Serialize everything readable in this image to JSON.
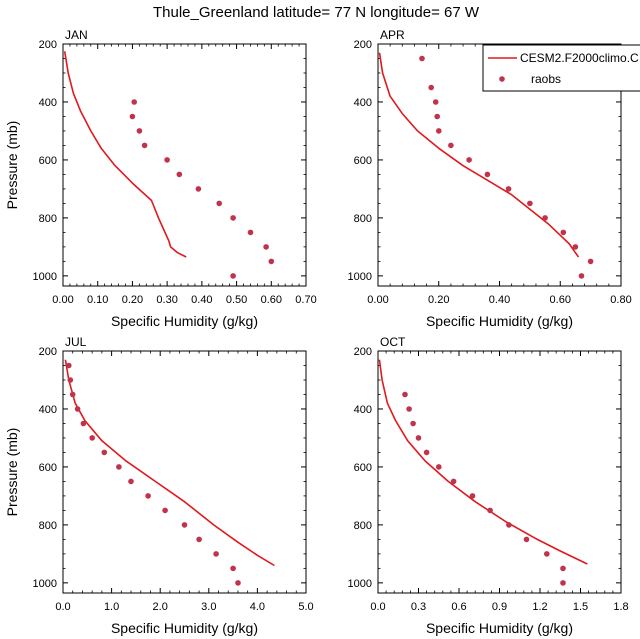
{
  "figure_title": "Thule_Greenland  latitude= 77 N longitude= 67 W",
  "colors": {
    "model_line": "#e0191e",
    "obs_marker": "#c0334b"
  },
  "legend": {
    "model_label": "CESM2.F2000climo.C",
    "obs_label": "raobs"
  },
  "chart_data": [
    {
      "type": "line",
      "panel_label": "JAN",
      "xlabel": "Specific Humidity (g/kg)",
      "ylabel": "Pressure (mb)",
      "xlim": [
        0,
        0.7
      ],
      "ylim": [
        200,
        1035
      ],
      "y_inverted": true,
      "xticks": [
        "0.00",
        "0.10",
        "0.20",
        "0.30",
        "0.40",
        "0.50",
        "0.60",
        "0.70"
      ],
      "yticks": [
        "200",
        "400",
        "600",
        "800",
        "1000"
      ],
      "series": [
        {
          "name": "CESM2.F2000climo.C",
          "style": "line",
          "x": [
            0.005,
            0.015,
            0.03,
            0.05,
            0.08,
            0.11,
            0.15,
            0.2,
            0.255,
            0.275,
            0.29,
            0.305,
            0.31,
            0.33,
            0.355
          ],
          "y": [
            225,
            300,
            370,
            430,
            500,
            560,
            620,
            680,
            740,
            800,
            840,
            880,
            900,
            920,
            935
          ]
        },
        {
          "name": "raobs",
          "style": "markers",
          "x": [
            0.205,
            0.2,
            0.22,
            0.235,
            0.3,
            0.335,
            0.39,
            0.45,
            0.49,
            0.54,
            0.585,
            0.6,
            0.49
          ],
          "y": [
            400,
            450,
            500,
            550,
            600,
            650,
            700,
            750,
            800,
            850,
            900,
            950,
            1000
          ]
        }
      ]
    },
    {
      "type": "line",
      "panel_label": "APR",
      "xlabel": "Specific Humidity (g/kg)",
      "ylabel": "",
      "xlim": [
        0,
        0.8
      ],
      "ylim": [
        200,
        1035
      ],
      "y_inverted": true,
      "xticks": [
        "0.00",
        "0.20",
        "0.40",
        "0.60",
        "0.80"
      ],
      "yticks": [
        "200",
        "400",
        "600",
        "800",
        "1000"
      ],
      "series": [
        {
          "name": "CESM2.F2000climo.C",
          "style": "line",
          "x": [
            0.005,
            0.015,
            0.04,
            0.08,
            0.13,
            0.2,
            0.28,
            0.36,
            0.44,
            0.5,
            0.56,
            0.6,
            0.63,
            0.65,
            0.66
          ],
          "y": [
            230,
            300,
            380,
            440,
            500,
            560,
            620,
            670,
            720,
            770,
            820,
            860,
            890,
            920,
            935
          ]
        },
        {
          "name": "raobs",
          "style": "markers",
          "x": [
            0.145,
            0.175,
            0.19,
            0.195,
            0.2,
            0.24,
            0.3,
            0.36,
            0.43,
            0.5,
            0.55,
            0.61,
            0.65,
            0.7,
            0.67
          ],
          "y": [
            250,
            350,
            400,
            450,
            500,
            550,
            600,
            650,
            700,
            750,
            800,
            850,
            900,
            950,
            1000
          ]
        }
      ]
    },
    {
      "type": "line",
      "panel_label": "JUL",
      "xlabel": "Specific Humidity (g/kg)",
      "ylabel": "Pressure (mb)",
      "xlim": [
        0,
        5.0
      ],
      "ylim": [
        200,
        1035
      ],
      "y_inverted": true,
      "xticks": [
        "0.0",
        "1.0",
        "2.0",
        "3.0",
        "4.0",
        "5.0"
      ],
      "yticks": [
        "200",
        "400",
        "600",
        "800",
        "1000"
      ],
      "series": [
        {
          "name": "CESM2.F2000climo.C",
          "style": "line",
          "x": [
            0.05,
            0.12,
            0.25,
            0.45,
            0.8,
            1.3,
            1.9,
            2.5,
            3.1,
            3.6,
            4.0,
            4.35
          ],
          "y": [
            230,
            300,
            380,
            440,
            510,
            580,
            650,
            720,
            800,
            860,
            905,
            940
          ]
        },
        {
          "name": "raobs",
          "style": "markers",
          "x": [
            0.12,
            0.15,
            0.2,
            0.3,
            0.42,
            0.6,
            0.85,
            1.15,
            1.4,
            1.75,
            2.1,
            2.5,
            2.8,
            3.15,
            3.5,
            3.6
          ],
          "y": [
            250,
            300,
            350,
            400,
            450,
            500,
            550,
            600,
            650,
            700,
            750,
            800,
            850,
            900,
            950,
            1000
          ]
        }
      ]
    },
    {
      "type": "line",
      "panel_label": "OCT",
      "xlabel": "Specific Humidity (g/kg)",
      "ylabel": "",
      "xlim": [
        0,
        1.8
      ],
      "ylim": [
        200,
        1035
      ],
      "y_inverted": true,
      "xticks": [
        "0.0",
        "0.3",
        "0.6",
        "0.9",
        "1.2",
        "1.5",
        "1.8"
      ],
      "yticks": [
        "200",
        "400",
        "600",
        "800",
        "1000"
      ],
      "series": [
        {
          "name": "CESM2.F2000climo.C",
          "style": "line",
          "x": [
            0.01,
            0.03,
            0.07,
            0.13,
            0.22,
            0.35,
            0.52,
            0.72,
            0.95,
            1.18,
            1.35,
            1.55
          ],
          "y": [
            230,
            300,
            380,
            440,
            510,
            580,
            650,
            720,
            790,
            850,
            890,
            935
          ]
        },
        {
          "name": "raobs",
          "style": "markers",
          "x": [
            0.2,
            0.23,
            0.26,
            0.3,
            0.36,
            0.45,
            0.56,
            0.7,
            0.83,
            0.97,
            1.1,
            1.25,
            1.37,
            1.37
          ],
          "y": [
            350,
            400,
            450,
            500,
            550,
            600,
            650,
            700,
            750,
            800,
            850,
            900,
            950,
            1000
          ]
        }
      ]
    }
  ]
}
